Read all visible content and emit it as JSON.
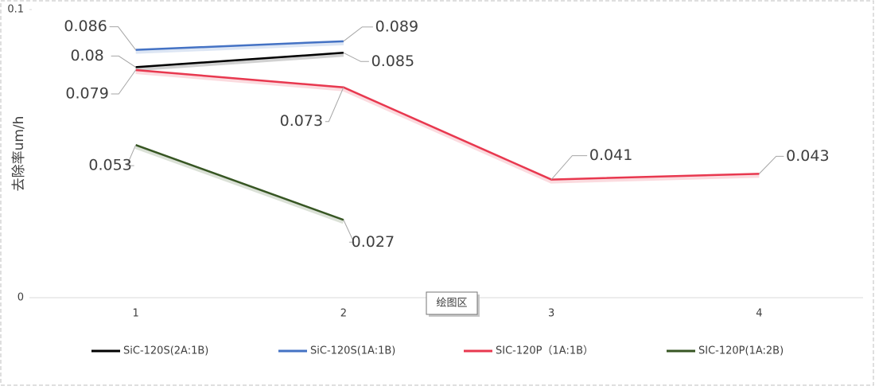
{
  "chart_data": {
    "type": "line",
    "y_label": "去除率um/h",
    "categories": [
      "1",
      "2",
      "3",
      "4"
    ],
    "series": [
      {
        "name": "SiC-120S(2A:1B)",
        "color": "#000000",
        "values": [
          0.08,
          0.085,
          null,
          null
        ]
      },
      {
        "name": "SiC-120S(1A:1B)",
        "color": "#4472c4",
        "values": [
          0.086,
          0.089,
          null,
          null
        ]
      },
      {
        "name": "SIC-120P（1A:1B）",
        "color": "#e8384f",
        "values": [
          0.079,
          0.073,
          0.041,
          0.043
        ]
      },
      {
        "name": "SIC-120P(1A:2B)",
        "color": "#375623",
        "values": [
          0.053,
          0.027,
          null,
          null
        ]
      }
    ],
    "ylim": [
      0,
      0.1
    ],
    "yticks": [
      0,
      0.1
    ],
    "legend": "bottom",
    "tooltip": "绘图区"
  }
}
